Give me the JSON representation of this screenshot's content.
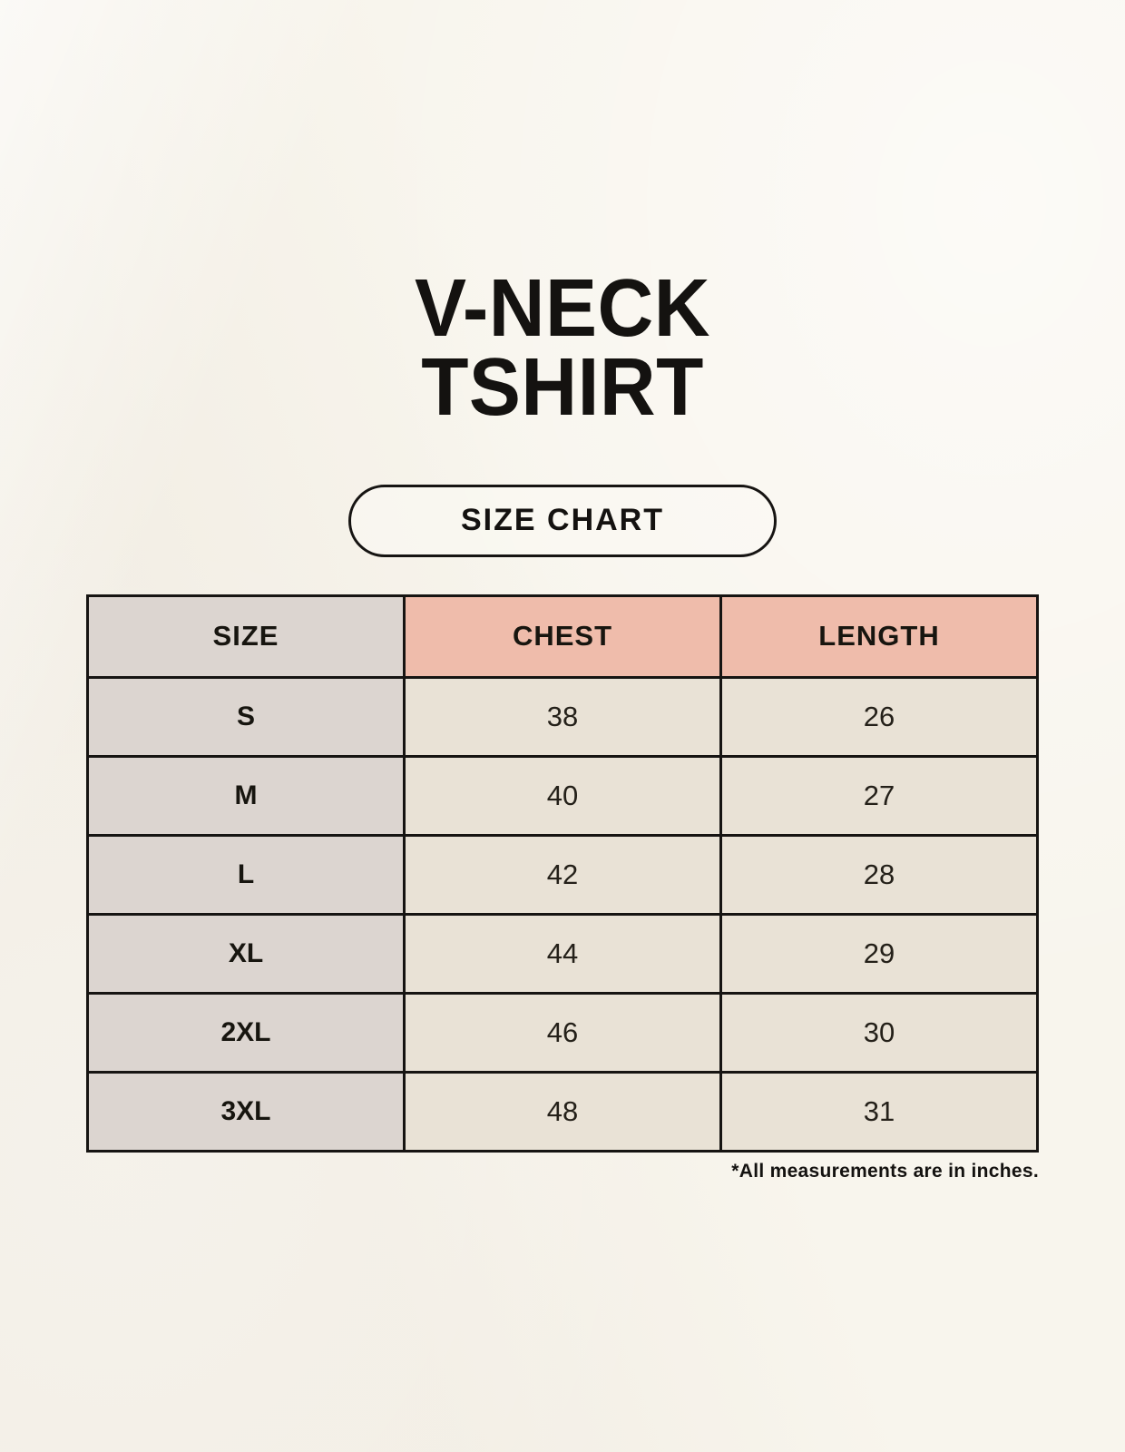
{
  "header": {
    "title_lines": [
      "V-NECK",
      "TSHIRT"
    ],
    "badge_label": "SIZE CHART"
  },
  "chart_data": {
    "type": "table",
    "title": "V-NECK TSHIRT",
    "subtitle": "SIZE CHART",
    "columns": [
      "SIZE",
      "CHEST",
      "LENGTH"
    ],
    "rows": [
      [
        "S",
        38,
        26
      ],
      [
        "M",
        40,
        27
      ],
      [
        "L",
        42,
        28
      ],
      [
        "XL",
        44,
        29
      ],
      [
        "2XL",
        46,
        30
      ],
      [
        "3XL",
        48,
        31
      ]
    ],
    "units": "inches",
    "note": "*All measurements are in inches."
  },
  "footer": {
    "note": "*All measurements are in inches."
  },
  "colors": {
    "page_background": "#f8f5ed",
    "header_accent": "#efbcab",
    "size_column": "#dcd5d0",
    "data_cell": "#e9e2d6",
    "border_ink": "#161412"
  }
}
